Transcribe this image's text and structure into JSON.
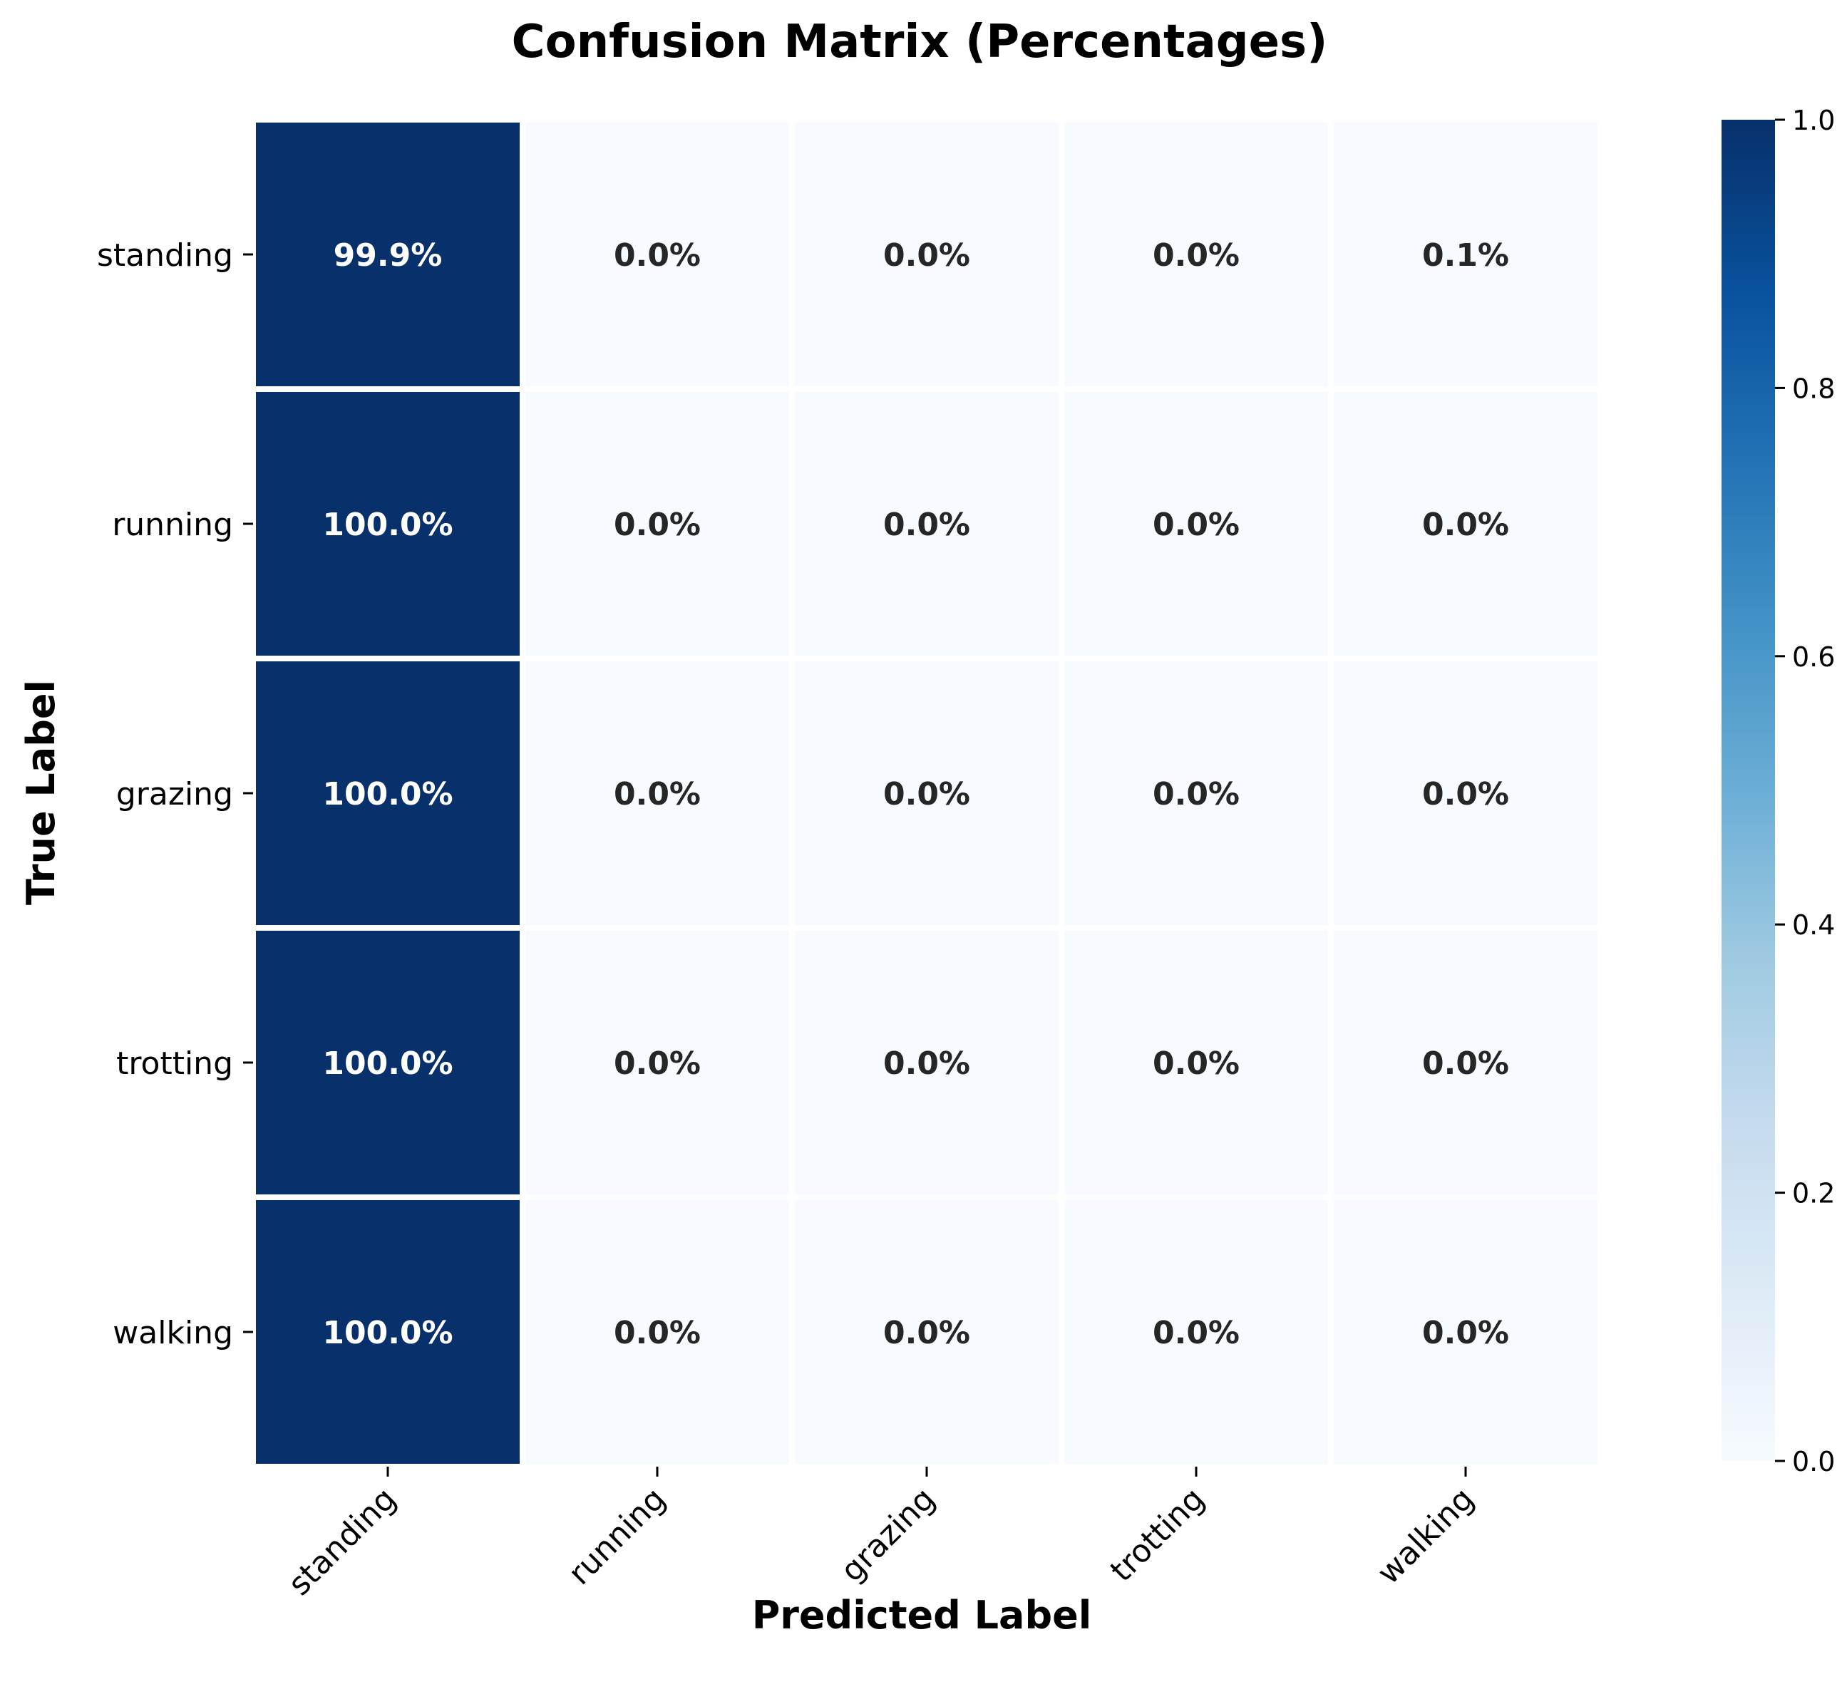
{
  "chart_data": {
    "type": "heatmap",
    "title": "Confusion Matrix (Percentages)",
    "xlabel": "Predicted Label",
    "ylabel": "True Label",
    "x_categories": [
      "standing",
      "running",
      "grazing",
      "trotting",
      "walking"
    ],
    "y_categories": [
      "standing",
      "running",
      "grazing",
      "trotting",
      "walking"
    ],
    "values": [
      [
        0.999,
        0.0,
        0.0,
        0.0,
        0.001
      ],
      [
        1.0,
        0.0,
        0.0,
        0.0,
        0.0
      ],
      [
        1.0,
        0.0,
        0.0,
        0.0,
        0.0
      ],
      [
        1.0,
        0.0,
        0.0,
        0.0,
        0.0
      ],
      [
        1.0,
        0.0,
        0.0,
        0.0,
        0.0
      ]
    ],
    "cell_labels": [
      [
        "99.9%",
        "0.0%",
        "0.0%",
        "0.0%",
        "0.1%"
      ],
      [
        "100.0%",
        "0.0%",
        "0.0%",
        "0.0%",
        "0.0%"
      ],
      [
        "100.0%",
        "0.0%",
        "0.0%",
        "0.0%",
        "0.0%"
      ],
      [
        "100.0%",
        "0.0%",
        "0.0%",
        "0.0%",
        "0.0%"
      ],
      [
        "100.0%",
        "0.0%",
        "0.0%",
        "0.0%",
        "0.0%"
      ]
    ],
    "colorbar": {
      "range": [
        0.0,
        1.0
      ],
      "ticks": [
        "0.0",
        "0.2",
        "0.4",
        "0.6",
        "0.8",
        "1.0"
      ],
      "colormap": "Blues",
      "colors": [
        "#f7fbff",
        "#deebf7",
        "#c6dbef",
        "#9ecae1",
        "#6baed6",
        "#4292c6",
        "#2171b5",
        "#08519c",
        "#08306b"
      ]
    },
    "grid": false,
    "legend": "colorbar-right"
  }
}
